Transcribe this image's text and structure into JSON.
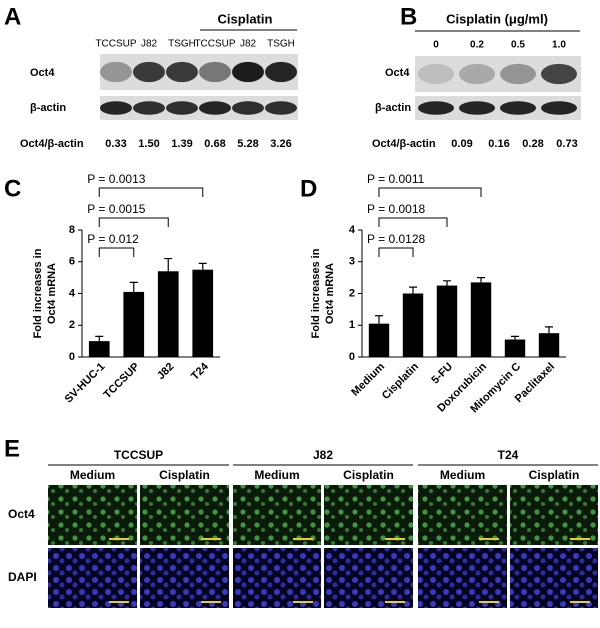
{
  "panels": {
    "A": {
      "label": "A",
      "group_label": "Cisplatin",
      "lanes": [
        "TCCSUP",
        "J82",
        "TSGH",
        "TCCSUP",
        "J82",
        "TSGH"
      ],
      "rows": [
        "Oct4",
        "β-actin"
      ],
      "ratio_label": "Oct4/β-actin",
      "ratios": [
        "0.33",
        "1.50",
        "1.39",
        "0.68",
        "5.28",
        "3.26"
      ]
    },
    "B": {
      "label": "B",
      "title": "Cisplatin (μg/ml)",
      "lanes": [
        "0",
        "0.2",
        "0.5",
        "1.0"
      ],
      "rows": [
        "Oct4",
        "β-actin"
      ],
      "ratio_label": "Oct4/β-actin",
      "ratios": [
        "0.09",
        "0.16",
        "0.28",
        "0.73"
      ]
    },
    "E": {
      "label": "E",
      "groups": [
        "TCCSUP",
        "J82",
        "T24"
      ],
      "conditions": [
        "Medium",
        "Cisplatin"
      ],
      "rows": [
        "Oct4",
        "DAPI"
      ]
    }
  },
  "chart_data": [
    {
      "type": "bar",
      "label": "C",
      "ylabel": [
        "Fold increases in",
        "Oct4 mRNA"
      ],
      "categories": [
        "SV-HUC-1",
        "TCCSUP",
        "J82",
        "T24"
      ],
      "series": [
        {
          "color": "#000000",
          "values": [
            1.0,
            4.1,
            5.4,
            5.5
          ],
          "errors": [
            0.3,
            0.6,
            0.8,
            0.4
          ]
        }
      ],
      "ylim": [
        0,
        8
      ],
      "yticks": [
        0,
        2,
        4,
        6,
        8
      ],
      "annotations": [
        "P = 0.012",
        "P = 0.0015",
        "P = 0.0013"
      ]
    },
    {
      "type": "bar",
      "label": "D",
      "ylabel": [
        "Fold increases in",
        "Oct4 mRNA"
      ],
      "categories": [
        "Medium",
        "Cisplatin",
        "5-FU",
        "Doxorubicin",
        "Mitomycin C",
        "Paclitaxel"
      ],
      "series": [
        {
          "color": "#000000",
          "values": [
            1.05,
            2.0,
            2.25,
            2.35,
            0.55,
            0.75
          ],
          "errors": [
            0.25,
            0.2,
            0.15,
            0.15,
            0.1,
            0.2
          ]
        }
      ],
      "ylim": [
        0,
        4
      ],
      "yticks": [
        0,
        1,
        2,
        3,
        4
      ],
      "annotations": [
        "P = 0.0128",
        "P = 0.0018",
        "P = 0.0011"
      ]
    }
  ]
}
